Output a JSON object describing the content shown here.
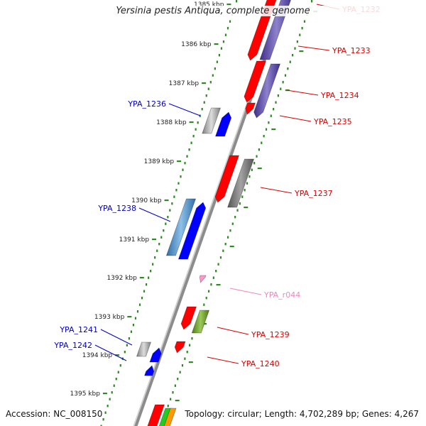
{
  "title": "Yersinia pestis Antiqua, complete genome",
  "accession": "Accession: NC_008150",
  "topology": "Topology: circular; Length: 4,702,289 bp; Genes: 4,267",
  "colors": {
    "backbone": "#8c8c8c",
    "tick": "#2e8b22",
    "forward_label": "#0000cc",
    "reverse_label": "#dd0000",
    "rna_label": "#ee88bb"
  },
  "scale_labels": [
    "1385 kbp",
    "1386 kbp",
    "1387 kbp",
    "1388 kbp",
    "1389 kbp",
    "1390 kbp",
    "1391 kbp",
    "1392 kbp",
    "1393 kbp",
    "1394 kbp",
    "1395 kbp"
  ],
  "genes": [
    {
      "label": "YPA_1232",
      "strand": "reverse",
      "color": "#ff0000"
    },
    {
      "label": "YPA_1233",
      "strand": "reverse",
      "color": "#ff0000"
    },
    {
      "label": "YPA_1234",
      "strand": "reverse",
      "color": "#ff0000"
    },
    {
      "label": "YPA_1235",
      "strand": "reverse",
      "color": "#ff0000"
    },
    {
      "label": "YPA_1236",
      "strand": "forward",
      "color": "#0000ff"
    },
    {
      "label": "YPA_1237",
      "strand": "reverse",
      "color": "#ff0000"
    },
    {
      "label": "YPA_1238",
      "strand": "forward",
      "color": "#0000ff"
    },
    {
      "label": "YPA_r044",
      "strand": "reverse",
      "color": "#ff99cc"
    },
    {
      "label": "YPA_1239",
      "strand": "reverse",
      "color": "#ff0000"
    },
    {
      "label": "YPA_1240",
      "strand": "reverse",
      "color": "#ff0000"
    },
    {
      "label": "YPA_1241",
      "strand": "forward",
      "color": "#0000ff"
    },
    {
      "label": "YPA_1242",
      "strand": "forward",
      "color": "#0000ff"
    }
  ]
}
